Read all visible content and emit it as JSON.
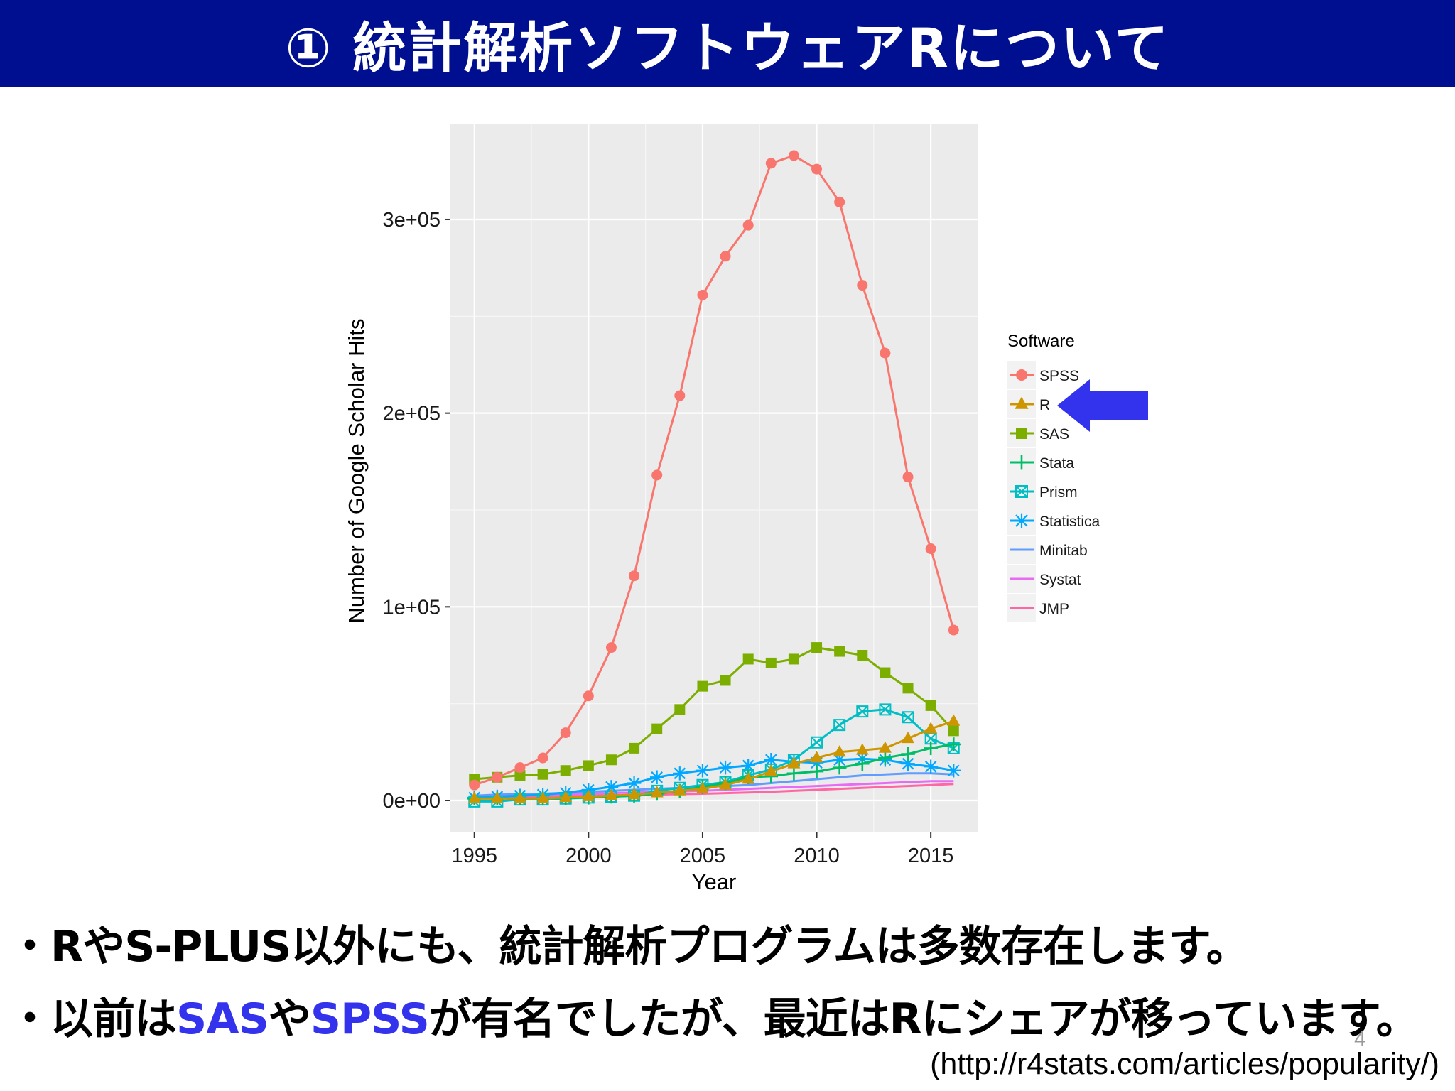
{
  "slide": {
    "title": "① 統計解析ソフトウェアRについて",
    "bullets": [
      {
        "segments": [
          {
            "text": "・RやS-PLUS以外にも、統計解析プログラムは多数存在します。",
            "highlight": false
          }
        ]
      },
      {
        "segments": [
          {
            "text": "・以前は",
            "highlight": false
          },
          {
            "text": "SAS",
            "highlight": true
          },
          {
            "text": "や",
            "highlight": false
          },
          {
            "text": "SPSS",
            "highlight": true
          },
          {
            "text": "が有名でしたが、最近はRにシェアが移っています。",
            "highlight": false
          }
        ]
      }
    ],
    "page_number": "4",
    "source": "(http://r4stats.com/articles/popularity/)",
    "colors": {
      "title_bar": "#000f8f",
      "highlight": "#3333ee",
      "arrow": "#3333ee"
    },
    "icons": {
      "legend_pointer": "left-arrow-icon"
    }
  },
  "chart_data": {
    "type": "line",
    "xlabel": "Year",
    "ylabel": "Number of Google Scholar Hits",
    "x_ticks": [
      1995,
      2000,
      2005,
      2010,
      2015
    ],
    "y_ticks": [
      {
        "value": 0,
        "label": "0e+00"
      },
      {
        "value": 100000,
        "label": "1e+05"
      },
      {
        "value": 200000,
        "label": "2e+05"
      },
      {
        "value": 300000,
        "label": "3e+05"
      }
    ],
    "xlim": [
      1993.95,
      2017.05
    ],
    "ylim": [
      -16500,
      349500
    ],
    "legend_title": "Software",
    "legend_position": "right",
    "x": [
      1995,
      1996,
      1997,
      1998,
      1999,
      2000,
      2001,
      2002,
      2003,
      2004,
      2005,
      2006,
      2007,
      2008,
      2009,
      2010,
      2011,
      2012,
      2013,
      2014,
      2015,
      2016
    ],
    "series": [
      {
        "name": "SPSS",
        "color": "#F8766D",
        "marker": "circle",
        "values": [
          8000,
          12000,
          17000,
          22000,
          35000,
          54000,
          79000,
          116000,
          168000,
          209000,
          261000,
          281000,
          297000,
          329000,
          333000,
          326000,
          309000,
          266000,
          231000,
          167000,
          130000,
          88000
        ]
      },
      {
        "name": "R",
        "color": "#CD9600",
        "marker": "triangle",
        "values": [
          1000,
          1000,
          1000,
          1000,
          1500,
          2000,
          2500,
          3000,
          4000,
          5000,
          6000,
          8000,
          11000,
          15000,
          19000,
          22000,
          25000,
          26000,
          27000,
          32000,
          37000,
          41000
        ]
      },
      {
        "name": "SAS",
        "color": "#7CAE00",
        "marker": "square",
        "values": [
          11000,
          12000,
          13000,
          13500,
          15500,
          18000,
          21000,
          27000,
          37000,
          47000,
          59000,
          62000,
          73000,
          71000,
          73000,
          79000,
          77000,
          75000,
          66000,
          58000,
          49000,
          36000
        ]
      },
      {
        "name": "Stata",
        "color": "#00BE67",
        "marker": "plus",
        "values": [
          1000,
          1000,
          1000,
          1000,
          1200,
          1500,
          2000,
          2500,
          3500,
          5000,
          7000,
          9000,
          12000,
          12500,
          14000,
          15000,
          17000,
          19000,
          22000,
          24000,
          27000,
          29000
        ]
      },
      {
        "name": "Prism",
        "color": "#00BFC4",
        "marker": "square-cross",
        "values": [
          -500,
          -500,
          500,
          500,
          1000,
          1500,
          2000,
          2500,
          5000,
          6500,
          8000,
          9500,
          13000,
          16000,
          21000,
          30000,
          39000,
          46000,
          47000,
          43000,
          32000,
          27000
        ]
      },
      {
        "name": "Statistica",
        "color": "#00A9FF",
        "marker": "asterisk",
        "values": [
          1500,
          2000,
          2500,
          3000,
          4000,
          5500,
          7000,
          9000,
          12000,
          14000,
          15500,
          17000,
          18000,
          21000,
          20000,
          19500,
          21000,
          21500,
          21000,
          19000,
          17500,
          15500
        ]
      },
      {
        "name": "Minitab",
        "color": "#619CFF",
        "marker": "none",
        "values": [
          2500,
          3000,
          3200,
          3500,
          4000,
          4500,
          5000,
          5500,
          6000,
          6500,
          7000,
          7500,
          8000,
          9000,
          10000,
          11000,
          12000,
          13000,
          13500,
          14000,
          14000,
          13500
        ]
      },
      {
        "name": "Systat",
        "color": "#E76BF3",
        "marker": "none",
        "values": [
          2000,
          2300,
          2600,
          2900,
          3200,
          3500,
          3800,
          4100,
          4400,
          4700,
          5000,
          5500,
          6000,
          6500,
          7000,
          7500,
          8000,
          8500,
          9000,
          9500,
          10000,
          10000
        ]
      },
      {
        "name": "JMP",
        "color": "#FF67A4",
        "marker": "none",
        "values": [
          1500,
          1700,
          1900,
          2100,
          2300,
          2500,
          2700,
          2900,
          3100,
          3300,
          3500,
          3800,
          4100,
          4500,
          5000,
          5500,
          6000,
          6500,
          7000,
          7500,
          8000,
          8500
        ]
      }
    ]
  }
}
